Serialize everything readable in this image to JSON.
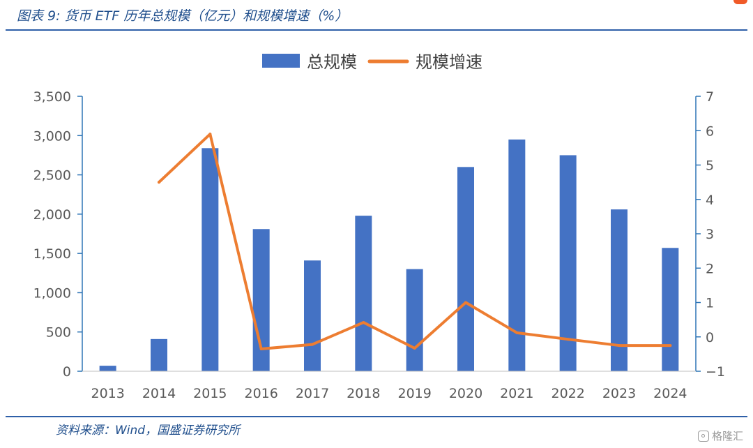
{
  "figure": {
    "title": "图表 9:  货币 ETF 历年总规模（亿元）和规模增速（%）",
    "source": "资料来源：Wind，国盛证券研究所",
    "watermark": "格隆汇"
  },
  "colors": {
    "bar": "#4472C4",
    "line": "#ED7D31",
    "axis": "#2E75B6",
    "text": "#595959",
    "header": "#1F4E8C"
  },
  "chart_data": {
    "type": "bar+line",
    "title": "",
    "categories": [
      "2013",
      "2014",
      "2015",
      "2016",
      "2017",
      "2018",
      "2019",
      "2020",
      "2021",
      "2022",
      "2023",
      "2024"
    ],
    "series": [
      {
        "name": "总规模",
        "type": "bar",
        "axis": "left",
        "values": [
          70,
          410,
          2840,
          1810,
          1410,
          1980,
          1300,
          2600,
          2950,
          2750,
          2060,
          1570
        ]
      },
      {
        "name": "规模增速",
        "type": "line",
        "axis": "right",
        "values": [
          null,
          4.5,
          5.9,
          -0.35,
          -0.22,
          0.42,
          -0.33,
          1.0,
          0.12,
          -0.07,
          -0.25,
          -0.25
        ]
      }
    ],
    "y_left": {
      "min": 0,
      "max": 3500,
      "ticks": [
        0,
        500,
        1000,
        1500,
        2000,
        2500,
        3000,
        3500
      ],
      "tick_labels": [
        "0",
        "500",
        "1,000",
        "1,500",
        "2,000",
        "2,500",
        "3,000",
        "3,500"
      ]
    },
    "y_right": {
      "min": -1,
      "max": 7,
      "ticks": [
        -1,
        0,
        1,
        2,
        3,
        4,
        5,
        6,
        7
      ],
      "tick_labels": [
        "−1",
        "0",
        "1",
        "2",
        "3",
        "4",
        "5",
        "6",
        "7"
      ]
    },
    "legend_position": "top-center",
    "grid": false
  }
}
